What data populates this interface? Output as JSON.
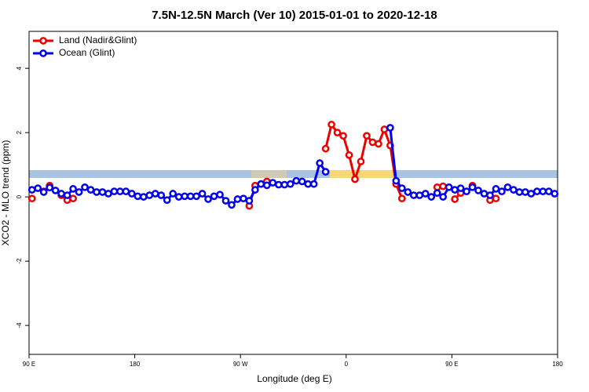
{
  "chart_data": {
    "type": "line",
    "title": "7.5N-12.5N March (Ver 10)   2015-01-01 to 2020-12-18",
    "xlabel": "Longitude (deg E)",
    "ylabel": "XCO2 - MLO trend (ppm)",
    "x": [
      92.5,
      97.5,
      102.5,
      107.5,
      112.5,
      117.5,
      122.5,
      127.5,
      132.5,
      137.5,
      142.5,
      147.5,
      152.5,
      157.5,
      162.5,
      167.5,
      172.5,
      177.5,
      182.5,
      187.5,
      192.5,
      197.5,
      202.5,
      207.5,
      212.5,
      217.5,
      222.5,
      227.5,
      232.5,
      237.5,
      242.5,
      247.5,
      252.5,
      257.5,
      262.5,
      267.5,
      272.5,
      277.5,
      282.5,
      287.5,
      292.5,
      297.5,
      302.5,
      307.5,
      312.5,
      317.5,
      322.5,
      327.5,
      332.5,
      337.5,
      342.5,
      347.5,
      352.5,
      357.5,
      362.5,
      367.5,
      372.5,
      377.5,
      382.5,
      387.5,
      392.5,
      397.5,
      402.5,
      407.5,
      412.5,
      417.5,
      422.5,
      427.5,
      432.5,
      437.5,
      442.5,
      447.5,
      452.5,
      457.5,
      462.5,
      467.5,
      472.5,
      477.5,
      482.5,
      487.5,
      492.5,
      497.5,
      502.5,
      507.5,
      512.5,
      517.5,
      522.5,
      527.5,
      532.5,
      537.5
    ],
    "series": [
      {
        "name": "Land (Nadir&Glint)",
        "color": "#ee0000",
        "values": [
          -0.05,
          null,
          0.17,
          0.35,
          null,
          0.05,
          -0.1,
          -0.05,
          null,
          null,
          null,
          null,
          null,
          null,
          null,
          null,
          null,
          null,
          null,
          null,
          null,
          null,
          null,
          null,
          null,
          null,
          null,
          null,
          null,
          null,
          null,
          null,
          null,
          null,
          null,
          null,
          null,
          -0.28,
          0.35,
          0.4,
          0.48,
          null,
          null,
          null,
          null,
          null,
          null,
          null,
          null,
          null,
          1.5,
          2.25,
          2.0,
          1.9,
          1.3,
          0.55,
          1.1,
          1.9,
          1.7,
          1.65,
          2.1,
          1.6,
          0.4,
          -0.05,
          null,
          null,
          null,
          null,
          null,
          0.3,
          0.33,
          null,
          -0.07,
          0.12,
          null,
          0.35,
          null,
          null,
          -0.1,
          -0.05,
          null,
          null,
          null,
          null,
          null,
          null,
          null,
          null,
          null,
          null
        ]
      },
      {
        "name": "Ocean (Glint)",
        "color": "#0000ee",
        "values": [
          0.22,
          0.27,
          0.15,
          0.29,
          0.2,
          0.1,
          0.05,
          0.25,
          0.15,
          0.3,
          0.22,
          0.15,
          0.15,
          0.1,
          0.17,
          0.17,
          0.17,
          0.1,
          0.02,
          0.0,
          0.05,
          0.1,
          0.05,
          -0.1,
          0.1,
          0.0,
          0.02,
          0.02,
          0.02,
          0.1,
          -0.07,
          0.02,
          0.07,
          -0.12,
          -0.25,
          -0.07,
          -0.05,
          -0.12,
          0.22,
          0.4,
          0.36,
          0.44,
          0.38,
          0.38,
          0.4,
          0.5,
          0.48,
          0.4,
          0.4,
          1.05,
          0.78,
          null,
          null,
          null,
          null,
          null,
          null,
          null,
          null,
          null,
          null,
          2.15,
          0.5,
          0.27,
          0.15,
          0.05,
          0.05,
          0.1,
          0.0,
          0.12,
          0.0,
          0.3,
          0.22,
          0.27,
          0.17,
          0.3,
          0.2,
          0.1,
          0.05,
          0.25,
          0.17,
          0.3,
          0.22,
          0.15,
          0.15,
          0.1,
          0.17,
          0.17,
          0.17,
          0.1
        ]
      }
    ],
    "xlim": [
      90,
      540
    ],
    "xticks": [
      {
        "value": 90,
        "label": "90 E"
      },
      180,
      {
        "value": 270,
        "label": "90 W"
      },
      {
        "value": 360,
        "label": "0"
      },
      {
        "value": 450,
        "label": "90 E"
      },
      {
        "value": 540,
        "label": "180"
      }
    ],
    "ylim": [
      -4.9,
      5.15
    ],
    "yticks": [
      -4,
      -2,
      0,
      2,
      4
    ],
    "legend": "top-left"
  }
}
